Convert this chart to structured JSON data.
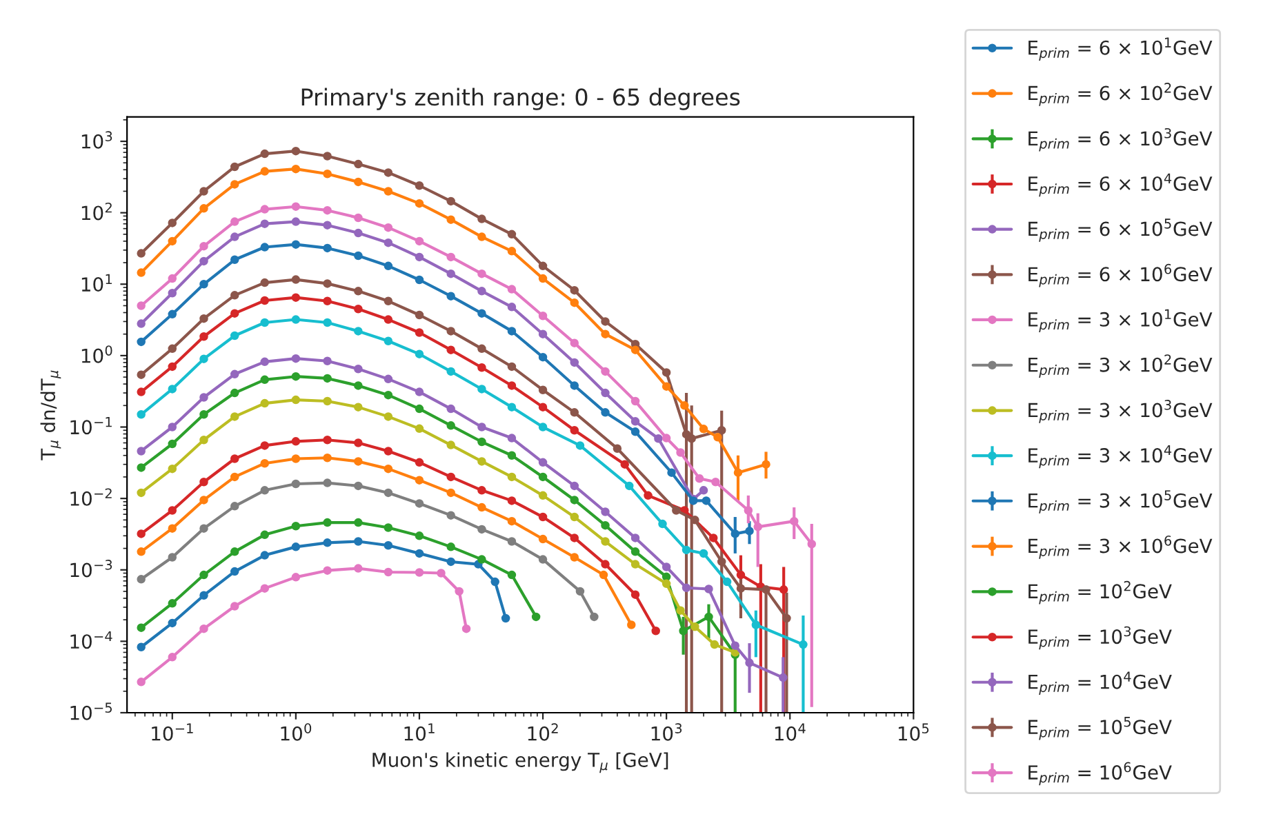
{
  "chart_data": {
    "type": "line",
    "title": "Primary's zenith range: 0 - 65 degrees",
    "xlabel": "Muon's kinetic energy T$_{μ}$ [GeV]",
    "ylabel": "T$_{μ}$ dn/dT$_{μ}$",
    "log": "xy",
    "grid": false,
    "legend": "right",
    "marker": "circle",
    "line_style": "solid",
    "xlim": [
      0.043,
      100000
    ],
    "ylim": [
      1e-05,
      2200
    ],
    "xticks": [
      {
        "value": 0.1,
        "label": "10$^{−1}$"
      },
      {
        "value": 1,
        "label": "10$^{0}$"
      },
      {
        "value": 10,
        "label": "10$^{1}$"
      },
      {
        "value": 100,
        "label": "10$^{2}$"
      },
      {
        "value": 1000,
        "label": "10$^{3}$"
      },
      {
        "value": 10000,
        "label": "10$^{4}$"
      },
      {
        "value": 100000,
        "label": "10$^{5}$"
      }
    ],
    "yticks": [
      {
        "value": 1e-05,
        "label": "10$^{−5}$"
      },
      {
        "value": 0.0001,
        "label": "10$^{−4}$"
      },
      {
        "value": 0.001,
        "label": "10$^{−3}$"
      },
      {
        "value": 0.01,
        "label": "10$^{−2}$"
      },
      {
        "value": 0.1,
        "label": "10$^{−1}$"
      },
      {
        "value": 1,
        "label": "10$^{0}$"
      },
      {
        "value": 10,
        "label": "10$^{1}$"
      },
      {
        "value": 100,
        "label": "10$^{2}$"
      },
      {
        "value": 1000,
        "label": "10$^{3}$"
      }
    ],
    "series": [
      {
        "name": "E$_{prim}$ = 6 × 10$^{1}$GeV",
        "color": "#1f77b4",
        "x": [
          0.056,
          0.1,
          0.18,
          0.32,
          0.56,
          1,
          1.8,
          3.2,
          5.6,
          10,
          18,
          30,
          41,
          50
        ],
        "values": [
          8.3e-05,
          0.00018,
          0.00044,
          0.00095,
          0.0016,
          0.0021,
          0.0024,
          0.0025,
          0.0022,
          0.0017,
          0.0013,
          0.0012,
          0.00068,
          0.00021
        ]
      },
      {
        "name": "E$_{prim}$ = 6 × 10$^{2}$GeV",
        "color": "#ff7f0e",
        "x": [
          0.056,
          0.1,
          0.18,
          0.32,
          0.56,
          1,
          1.8,
          3.2,
          5.6,
          10,
          18,
          32,
          56,
          100,
          180,
          310,
          520
        ],
        "values": [
          0.0018,
          0.0038,
          0.0095,
          0.02,
          0.031,
          0.036,
          0.037,
          0.033,
          0.026,
          0.018,
          0.012,
          0.0075,
          0.0048,
          0.0027,
          0.0015,
          0.00085,
          0.00017
        ]
      },
      {
        "name": "E$_{prim}$ = 6 × 10$^{3}$GeV",
        "color": "#2ca02c",
        "x": [
          0.056,
          0.1,
          0.18,
          0.32,
          0.56,
          1,
          1.8,
          3.2,
          5.6,
          10,
          18,
          32,
          56,
          100,
          180,
          320,
          560,
          1000,
          1370,
          2200,
          3600
        ],
        "values": [
          0.027,
          0.058,
          0.15,
          0.3,
          0.46,
          0.51,
          0.48,
          0.38,
          0.28,
          0.18,
          0.105,
          0.062,
          0.04,
          0.02,
          0.0095,
          0.0042,
          0.0018,
          0.0008,
          0.00014,
          0.00022,
          6.5e-05
        ],
        "errors": [
          null,
          null,
          null,
          null,
          null,
          null,
          null,
          null,
          null,
          null,
          null,
          null,
          null,
          null,
          null,
          null,
          null,
          null,
          [
            6.5e-05,
            0.00022
          ],
          [
            0.00011,
            0.00033
          ],
          [
            1e-05,
            9e-05
          ]
        ]
      },
      {
        "name": "E$_{prim}$ = 6 × 10$^{4}$GeV",
        "color": "#d62728",
        "x": [
          0.056,
          0.1,
          0.18,
          0.32,
          0.56,
          1,
          1.8,
          3.2,
          5.6,
          10,
          18,
          32,
          56,
          100,
          180,
          460,
          710,
          1400,
          2400,
          4000,
          5800,
          8900
        ],
        "values": [
          0.31,
          0.7,
          1.85,
          3.9,
          5.9,
          6.5,
          5.8,
          4.5,
          3.2,
          2.1,
          1.2,
          0.68,
          0.38,
          0.19,
          0.09,
          0.03,
          0.011,
          0.0068,
          0.0028,
          0.00085,
          0.00058,
          0.00053
        ],
        "errors": [
          null,
          null,
          null,
          null,
          null,
          null,
          null,
          null,
          null,
          null,
          null,
          null,
          null,
          null,
          null,
          null,
          null,
          null,
          null,
          [
            0.0003,
            0.0016
          ],
          [
            1e-05,
            0.0012
          ],
          [
            1e-05,
            0.0011
          ]
        ]
      },
      {
        "name": "E$_{prim}$ = 6 × 10$^{5}$GeV",
        "color": "#9467bd",
        "x": [
          0.056,
          0.1,
          0.18,
          0.32,
          0.56,
          1,
          1.8,
          3.2,
          5.6,
          10,
          18,
          32,
          56,
          100,
          180,
          320,
          560,
          860,
          1650,
          2000
        ],
        "values": [
          2.8,
          7.5,
          21,
          46,
          70,
          75,
          67,
          52,
          38,
          24,
          14,
          8,
          4.8,
          2.0,
          0.8,
          0.3,
          0.12,
          0.069,
          0.0098,
          0.013
        ]
      },
      {
        "name": "E$_{prim}$ = 6 × 10$^{6}$GeV",
        "color": "#8c564b",
        "x": [
          0.056,
          0.1,
          0.18,
          0.32,
          0.56,
          1,
          1.8,
          3.2,
          5.6,
          10,
          18,
          32,
          56,
          100,
          180,
          320,
          560,
          1000,
          1450,
          1600,
          2800
        ],
        "values": [
          27,
          72,
          200,
          440,
          670,
          730,
          620,
          480,
          365,
          240,
          145,
          82,
          50,
          18,
          8.2,
          3.0,
          1.45,
          0.58,
          0.079,
          0.069,
          0.09
        ],
        "errors": [
          null,
          null,
          null,
          null,
          null,
          null,
          null,
          null,
          null,
          null,
          null,
          null,
          null,
          null,
          null,
          null,
          null,
          null,
          [
            1e-05,
            0.3
          ],
          [
            1e-05,
            0.2
          ],
          [
            1e-05,
            0.17
          ]
        ]
      },
      {
        "name": "E$_{prim}$ = 3 × 10$^{1}$GeV",
        "color": "#e377c2",
        "x": [
          0.056,
          0.1,
          0.18,
          0.32,
          0.56,
          1,
          1.8,
          3.2,
          5.6,
          10,
          15,
          21,
          24
        ],
        "values": [
          2.7e-05,
          6e-05,
          0.00015,
          0.00031,
          0.00055,
          0.00079,
          0.00098,
          0.00105,
          0.00093,
          0.00092,
          0.0009,
          0.0005,
          0.00015
        ]
      },
      {
        "name": "E$_{prim}$ = 3 × 10$^{2}$GeV",
        "color": "#7f7f7f",
        "x": [
          0.056,
          0.1,
          0.18,
          0.32,
          0.56,
          1,
          1.8,
          3.2,
          5.6,
          10,
          18,
          32,
          56,
          100,
          200,
          260
        ],
        "values": [
          0.00074,
          0.0015,
          0.0038,
          0.0078,
          0.013,
          0.016,
          0.0165,
          0.015,
          0.012,
          0.0085,
          0.0058,
          0.0037,
          0.0025,
          0.0014,
          0.0005,
          0.00022
        ]
      },
      {
        "name": "E$_{prim}$ = 3 × 10$^{3}$GeV",
        "color": "#bcbd22",
        "x": [
          0.056,
          0.1,
          0.18,
          0.32,
          0.56,
          1,
          1.8,
          3.2,
          5.6,
          10,
          18,
          32,
          56,
          100,
          180,
          320,
          560,
          1000,
          1300,
          1700,
          2450,
          3600
        ],
        "values": [
          0.012,
          0.026,
          0.066,
          0.14,
          0.215,
          0.24,
          0.23,
          0.19,
          0.14,
          0.095,
          0.056,
          0.033,
          0.02,
          0.011,
          0.0055,
          0.0025,
          0.0012,
          0.00064,
          0.00027,
          0.00016,
          9e-05,
          7e-05
        ]
      },
      {
        "name": "E$_{prim}$ = 3 × 10$^{4}$GeV",
        "color": "#17becf",
        "x": [
          0.056,
          0.1,
          0.18,
          0.32,
          0.56,
          1,
          1.8,
          3.2,
          5.6,
          10,
          18,
          32,
          56,
          100,
          200,
          500,
          930,
          1450,
          2000,
          3100,
          5300,
          12800
        ],
        "values": [
          0.15,
          0.34,
          0.9,
          1.9,
          2.9,
          3.2,
          2.9,
          2.2,
          1.6,
          1.05,
          0.6,
          0.34,
          0.19,
          0.1,
          0.055,
          0.015,
          0.0044,
          0.0019,
          0.0017,
          0.00068,
          0.00017,
          9e-05
        ],
        "errors": [
          null,
          null,
          null,
          null,
          null,
          null,
          null,
          null,
          null,
          null,
          null,
          null,
          null,
          null,
          null,
          null,
          null,
          null,
          null,
          null,
          [
            6e-05,
            0.00027
          ],
          [
            1e-05,
            0.00023
          ]
        ]
      },
      {
        "name": "E$_{prim}$ = 3 × 10$^{5}$GeV",
        "color": "#1f77b4",
        "x": [
          0.056,
          0.1,
          0.18,
          0.32,
          0.56,
          1,
          1.8,
          3.2,
          5.6,
          10,
          18,
          32,
          56,
          100,
          180,
          320,
          560,
          1100,
          1650,
          2100,
          3600,
          4700
        ],
        "values": [
          1.56,
          3.8,
          10,
          22,
          33,
          36,
          32,
          25,
          18,
          11.5,
          6.8,
          3.9,
          2.2,
          0.95,
          0.38,
          0.16,
          0.086,
          0.023,
          0.0093,
          0.0093,
          0.0032,
          0.0035
        ],
        "errors": [
          null,
          null,
          null,
          null,
          null,
          null,
          null,
          null,
          null,
          null,
          null,
          null,
          null,
          null,
          null,
          null,
          null,
          null,
          null,
          null,
          [
            0.0017,
            0.0055
          ],
          [
            0.0023,
            0.0048
          ]
        ]
      },
      {
        "name": "E$_{prim}$ = 3 × 10$^{6}$GeV",
        "color": "#ff7f0e",
        "x": [
          0.056,
          0.1,
          0.18,
          0.32,
          0.56,
          1,
          1.8,
          3.2,
          5.6,
          10,
          18,
          32,
          56,
          100,
          180,
          320,
          560,
          1000,
          1400,
          2000,
          2600,
          3800,
          6400
        ],
        "values": [
          14.5,
          40,
          115,
          250,
          380,
          410,
          350,
          270,
          200,
          135,
          80,
          46,
          29,
          12,
          5.5,
          2.0,
          1.2,
          0.37,
          0.2,
          0.094,
          0.072,
          0.023,
          0.03
        ],
        "errors": [
          null,
          null,
          null,
          null,
          null,
          null,
          null,
          null,
          null,
          null,
          null,
          null,
          null,
          null,
          null,
          null,
          null,
          null,
          null,
          null,
          null,
          [
            0.0093,
            0.04
          ],
          [
            0.019,
            0.045
          ]
        ]
      },
      {
        "name": "E$_{prim}$ = 10$^{2}$GeV",
        "color": "#2ca02c",
        "x": [
          0.056,
          0.1,
          0.18,
          0.32,
          0.56,
          1,
          1.8,
          3.2,
          5.6,
          10,
          18,
          32,
          56,
          88
        ],
        "values": [
          0.000155,
          0.00034,
          0.00085,
          0.0018,
          0.0031,
          0.0041,
          0.0046,
          0.0046,
          0.0039,
          0.003,
          0.0021,
          0.0014,
          0.00085,
          0.00022
        ]
      },
      {
        "name": "E$_{prim}$ = 10$^{3}$GeV",
        "color": "#d62728",
        "x": [
          0.056,
          0.1,
          0.18,
          0.32,
          0.56,
          1,
          1.8,
          3.2,
          5.6,
          10,
          18,
          32,
          56,
          100,
          180,
          320,
          560,
          820
        ],
        "values": [
          0.0032,
          0.0068,
          0.017,
          0.036,
          0.055,
          0.063,
          0.066,
          0.06,
          0.046,
          0.032,
          0.02,
          0.013,
          0.0093,
          0.0055,
          0.0028,
          0.0012,
          0.00045,
          0.00014
        ]
      },
      {
        "name": "E$_{prim}$ = 10$^{4}$GeV",
        "color": "#9467bd",
        "x": [
          0.056,
          0.1,
          0.18,
          0.32,
          0.56,
          1,
          1.8,
          3.2,
          5.6,
          10,
          18,
          32,
          56,
          100,
          180,
          320,
          560,
          1000,
          1450,
          2200,
          3600,
          4700,
          8800
        ],
        "values": [
          0.046,
          0.1,
          0.26,
          0.55,
          0.82,
          0.91,
          0.84,
          0.65,
          0.47,
          0.31,
          0.18,
          0.1,
          0.07,
          0.032,
          0.015,
          0.0065,
          0.0028,
          0.0011,
          0.00056,
          0.00054,
          8.7e-05,
          5e-05,
          3.1e-05
        ],
        "errors": [
          null,
          null,
          null,
          null,
          null,
          null,
          null,
          null,
          null,
          null,
          null,
          null,
          null,
          null,
          null,
          null,
          null,
          null,
          null,
          null,
          null,
          [
            1.9e-05,
            9.4e-05
          ],
          [
            1e-05,
            6e-05
          ]
        ]
      },
      {
        "name": "E$_{prim}$ = 10$^{5}$GeV",
        "color": "#8c564b",
        "x": [
          0.056,
          0.1,
          0.18,
          0.32,
          0.56,
          1,
          1.8,
          3.2,
          5.6,
          10,
          18,
          32,
          56,
          100,
          180,
          400,
          1200,
          1700,
          2800,
          4000,
          6400,
          9400
        ],
        "values": [
          0.54,
          1.25,
          3.3,
          7,
          10.5,
          11.6,
          10.2,
          8,
          5.8,
          3.7,
          2.2,
          1.25,
          0.7,
          0.33,
          0.16,
          0.05,
          0.0068,
          0.005,
          0.0013,
          0.00055,
          0.00053,
          0.00021
        ],
        "errors": [
          null,
          null,
          null,
          null,
          null,
          null,
          null,
          null,
          null,
          null,
          null,
          null,
          null,
          null,
          null,
          null,
          null,
          null,
          null,
          [
            0.00021,
            0.001
          ],
          [
            1e-05,
            0.00055
          ],
          [
            1e-05,
            0.00048
          ]
        ]
      },
      {
        "name": "E$_{prim}$ = 10$^{6}$GeV",
        "color": "#e377c2",
        "x": [
          0.056,
          0.1,
          0.18,
          0.32,
          0.56,
          1,
          1.8,
          3.2,
          5.6,
          10,
          18,
          32,
          56,
          100,
          180,
          320,
          560,
          1000,
          1300,
          1850,
          2500,
          4600,
          5500,
          10800,
          15000
        ],
        "values": [
          5,
          12,
          34,
          75,
          112,
          122,
          108,
          85,
          62,
          40,
          24,
          14,
          8.5,
          3.6,
          1.5,
          0.6,
          0.23,
          0.07,
          0.044,
          0.019,
          0.017,
          0.0068,
          0.004,
          0.0048,
          0.0023
        ],
        "errors": [
          null,
          null,
          null,
          null,
          null,
          null,
          null,
          null,
          null,
          null,
          null,
          null,
          null,
          null,
          null,
          null,
          null,
          null,
          null,
          null,
          null,
          [
            0.0045,
            0.011
          ],
          [
            0.0011,
            0.0062
          ],
          [
            0.0027,
            0.0075
          ],
          [
            1.2e-05,
            0.0044
          ]
        ]
      }
    ]
  }
}
